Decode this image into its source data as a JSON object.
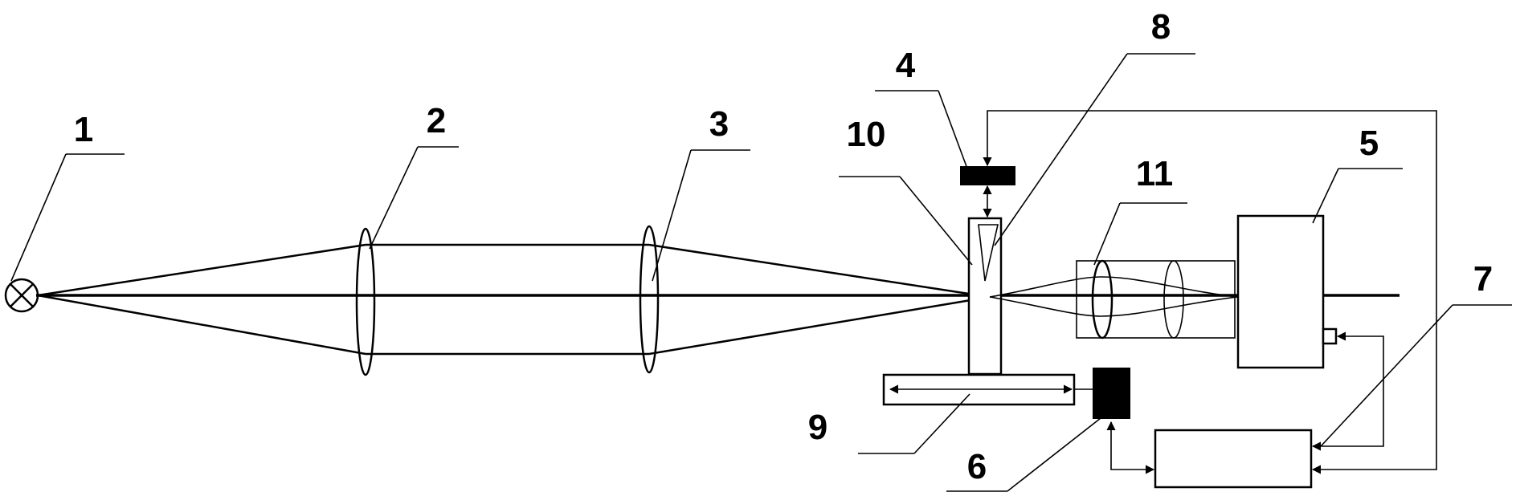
{
  "labels": {
    "l1": "1",
    "l2": "2",
    "l3": "3",
    "l4": "4",
    "l5": "5",
    "l6": "6",
    "l7": "7",
    "l8": "8",
    "l9": "9",
    "l10": "10",
    "l11": "11"
  }
}
